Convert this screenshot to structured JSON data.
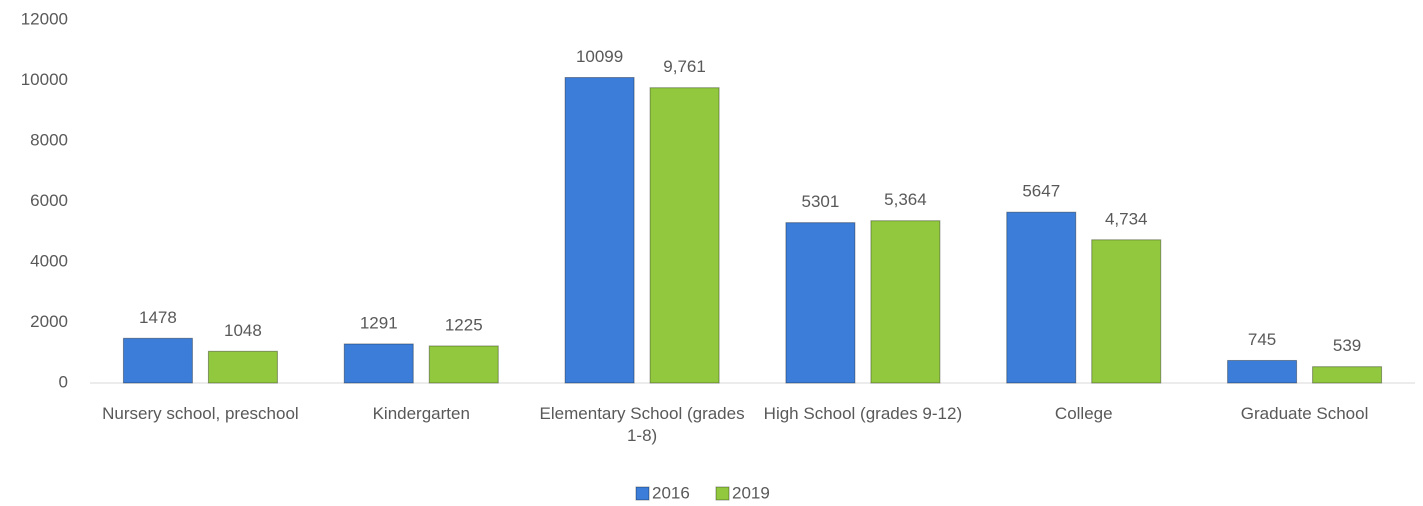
{
  "chart_data": {
    "type": "bar",
    "categories": [
      "Nursery school, preschool",
      "Kindergarten",
      "Elementary School (grades 1-8)",
      "High School (grades 9-12)",
      "College",
      "Graduate School"
    ],
    "series": [
      {
        "name": "2016",
        "color": "#3b7dd8",
        "values": [
          1478,
          1291,
          10099,
          5301,
          5647,
          745
        ]
      },
      {
        "name": "2019",
        "color": "#92c83e",
        "values": [
          1048,
          1225,
          9761,
          5364,
          4734,
          539
        ],
        "value_labels": [
          "1048",
          "1225",
          "9,761",
          "5,364",
          "4,734",
          "539"
        ]
      }
    ],
    "ylim": [
      0,
      12000
    ],
    "yticks": [
      0,
      2000,
      4000,
      6000,
      8000,
      10000,
      12000
    ],
    "grid": false,
    "legend": "bottom"
  }
}
